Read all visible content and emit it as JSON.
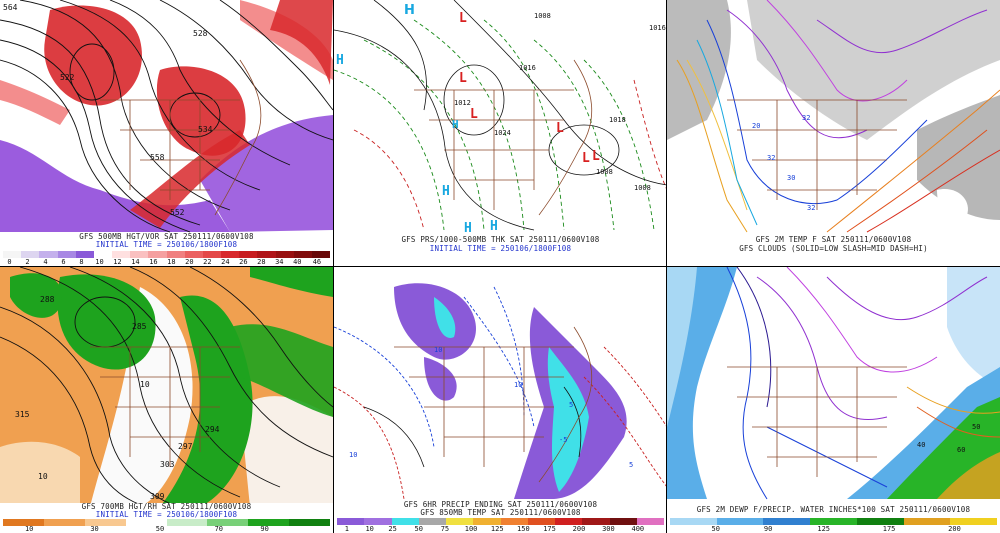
{
  "panels": [
    {
      "id": "p1",
      "caption1": "GFS 500MB HGT/VOR SAT 250111/0600V108",
      "caption2": "INITIAL TIME = 250106/1800F108",
      "ticks": [
        "0",
        "2",
        "4",
        "6",
        "8",
        "10",
        "12",
        "14",
        "16",
        "18",
        "20",
        "22",
        "24",
        "26",
        "28",
        "34",
        "40",
        "46"
      ],
      "labels": [
        "564",
        "528",
        "534",
        "522",
        "552",
        "570",
        "558",
        "546"
      ]
    },
    {
      "id": "p2",
      "caption1": "GFS PRS/1000-500MB THK SAT 250111/0600V108",
      "caption2": "INITIAL TIME = 250106/1800F108",
      "labels": [
        "H",
        "H",
        "L",
        "L",
        "L",
        "L",
        "L",
        "L",
        "H",
        "H",
        "H",
        "H",
        "1008",
        "1016",
        "1012",
        "1024",
        "1008",
        "1018",
        "1016",
        "1008"
      ]
    },
    {
      "id": "p3",
      "caption1": "GFS 2M TEMP F SAT 250111/0600V108",
      "caption2": "GFS CLOUDS (SOLID=LOW SLASH=MID DASH=HI)",
      "labels": [
        "32",
        "32",
        "20",
        "32",
        "30",
        "32",
        "32"
      ]
    },
    {
      "id": "p4",
      "caption1": "GFS 700MB HGT/RH SAT 250111/0600V108",
      "caption2": "INITIAL TIME = 250106/1800F108",
      "ticks": [
        "10",
        "30",
        "50",
        "70",
        "90"
      ],
      "labels": [
        "288",
        "285",
        "309",
        "306",
        "303",
        "297",
        "294",
        "315",
        "10",
        "10"
      ]
    },
    {
      "id": "p5",
      "caption1": "GFS 6HR PRECIP ENDING SAT 250111/0600V108",
      "caption2": "GFS 850MB TEMP SAT 250111/0600V108",
      "ticks": [
        "1",
        "10",
        "25",
        "50",
        "75",
        "100",
        "125",
        "150",
        "175",
        "200",
        "300",
        "400"
      ],
      "labels": [
        "10",
        "10",
        "5",
        "-5",
        "10",
        "5"
      ]
    },
    {
      "id": "p6",
      "caption1": "GFS 2M DEWP F/PRECIP. WATER INCHES*100 SAT 250111/0600V108",
      "ticks": [
        "50",
        "90",
        "125",
        "175",
        "200"
      ],
      "labels": [
        "60",
        "50",
        "40"
      ]
    }
  ],
  "colors": {
    "vor_red": "#d8282c",
    "vor_pink": "#f07070",
    "vor_purple": "#8a3fd8",
    "rh_green": "#1ea31e",
    "rh_orange": "#f0a050",
    "precip_purple": "#8a5ad8",
    "precip_cyan": "#40e0e8",
    "pw_blue": "#5aaee8",
    "pw_green": "#28b428",
    "cloud_gray": "#999999"
  }
}
